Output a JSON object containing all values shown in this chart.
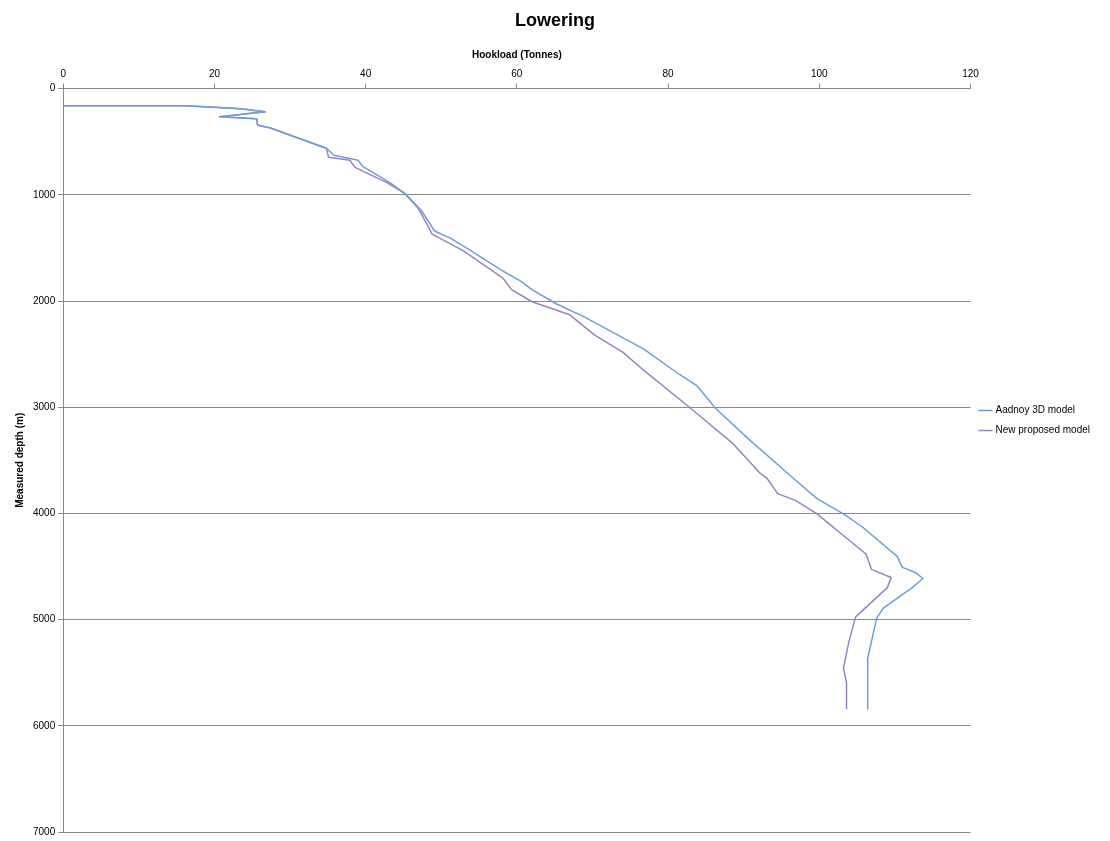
{
  "chart_data": {
    "type": "line",
    "title": "Lowering",
    "xlabel": "Hookload (Tonnes)",
    "ylabel": "Measured depth (m)",
    "xlim": [
      0,
      120
    ],
    "xticks": [
      0,
      20,
      40,
      60,
      80,
      100,
      120
    ],
    "ylim": [
      7000,
      0
    ],
    "yticks": [
      0,
      1000,
      2000,
      3000,
      4000,
      5000,
      6000,
      7000
    ],
    "grid": "y",
    "legend": "right",
    "marker": "none",
    "line_style": "solid",
    "series": [
      {
        "name": "Aadnoy 3D model",
        "color": "#6a9fd8",
        "x": [
          0,
          16.2,
          23.5,
          26.7,
          20.7,
          25.6,
          25.7,
          27.4,
          34.8,
          35.8,
          39.0,
          39.6,
          43.2,
          45.2,
          47.4,
          49.1,
          51.2,
          54.0,
          57.8,
          60.6,
          62.0,
          65.2,
          68.9,
          76.8,
          81.5,
          83.8,
          86.2,
          90.8,
          96.9,
          99.7,
          103.4,
          105.7,
          110.3,
          111.0,
          112.7,
          113.7,
          112.3,
          108.5,
          107.6,
          106.4,
          106.4
        ],
        "values": [
          162,
          162,
          190,
          219,
          266,
          285,
          342,
          371,
          561,
          628,
          675,
          732,
          885,
          989,
          1150,
          1341,
          1408,
          1531,
          1703,
          1817,
          1893,
          2026,
          2149,
          2454,
          2692,
          2796,
          3005,
          3310,
          3690,
          3861,
          4014,
          4128,
          4404,
          4508,
          4556,
          4613,
          4699,
          4889,
          4984,
          5364,
          5840
        ]
      },
      {
        "name": "New proposed model",
        "color": "#9a82c2",
        "x": [
          0,
          16.2,
          23.5,
          26.7,
          20.7,
          25.6,
          25.7,
          27.4,
          34.8,
          35.1,
          37.9,
          38.6,
          42.8,
          45.2,
          47.0,
          48.8,
          53.0,
          58.2,
          59.3,
          62.0,
          67.0,
          70.3,
          74.0,
          76.8,
          82.9,
          88.5,
          92.2,
          93.1,
          94.5,
          96.9,
          99.7,
          106.2,
          106.9,
          109.5,
          109.0,
          104.8,
          103.9,
          103.2,
          103.6,
          103.6
        ],
        "values": [
          162,
          162,
          190,
          219,
          266,
          285,
          342,
          371,
          561,
          647,
          675,
          742,
          885,
          989,
          1132,
          1370,
          1531,
          1788,
          1893,
          2007,
          2130,
          2321,
          2482,
          2654,
          3005,
          3338,
          3624,
          3671,
          3814,
          3880,
          4004,
          4385,
          4527,
          4604,
          4699,
          4974,
          5212,
          5459,
          5592,
          5840
        ]
      }
    ]
  }
}
